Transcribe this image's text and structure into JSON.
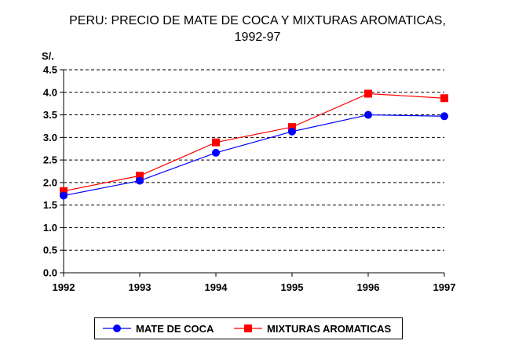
{
  "chart_data": {
    "type": "line",
    "title": "PERU: PRECIO DE MATE DE COCA Y MIXTURAS AROMATICAS,",
    "subtitle": "1992-97",
    "ylabel": "S/.",
    "xlabel": "",
    "x": [
      "1992",
      "1993",
      "1994",
      "1995",
      "1996",
      "1997"
    ],
    "ylim": [
      0,
      4.5
    ],
    "yticks": [
      "0.0",
      "0.5",
      "1.0",
      "1.5",
      "2.0",
      "2.5",
      "3.0",
      "3.5",
      "4.0",
      "4.5"
    ],
    "grid": true,
    "legend_position": "bottom",
    "series": [
      {
        "name": "MATE DE COCA",
        "values": [
          1.71,
          2.04,
          2.66,
          3.13,
          3.5,
          3.47
        ],
        "color": "#0000FF",
        "marker": "circle"
      },
      {
        "name": "MIXTURAS AROMATICAS",
        "values": [
          1.81,
          2.15,
          2.89,
          3.23,
          3.97,
          3.87
        ],
        "color": "#FF0000",
        "marker": "square"
      }
    ]
  }
}
